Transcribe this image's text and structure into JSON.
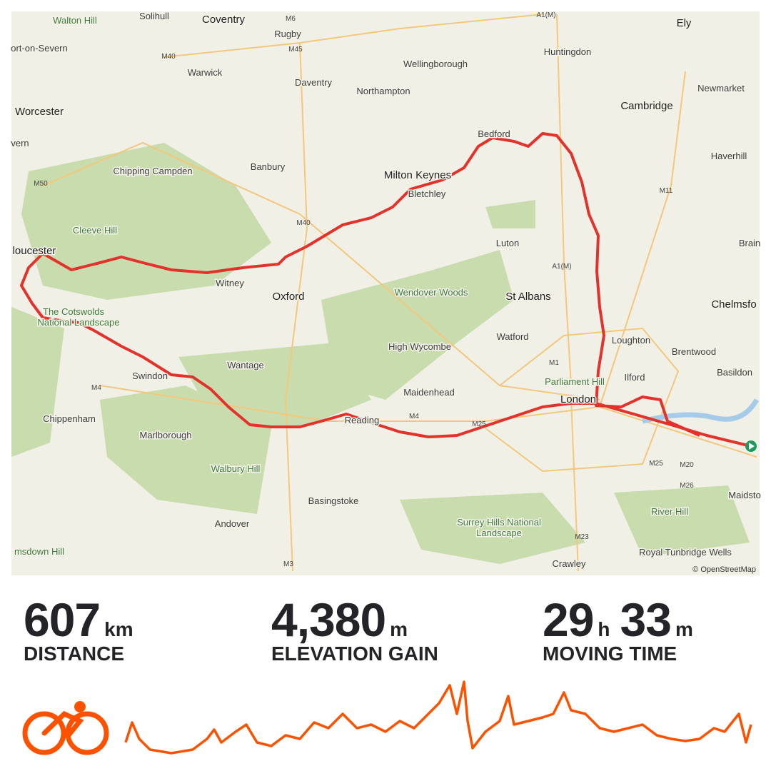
{
  "map": {
    "labels": [
      "Walton Hill",
      "Solihull",
      "Coventry",
      "M6",
      "Rugby",
      "M45",
      "A1(M)",
      "Ely",
      "ort-on-Severn",
      "M40",
      "Warwick",
      "Huntingdon",
      "Wellingborough",
      "Daventry",
      "Northampton",
      "Newmarket",
      "Worcester",
      "Cambridge",
      "vern",
      "Bedford",
      "Haverhill",
      "Chipping Campden",
      "Banbury",
      "Milton Keynes",
      "M50",
      "Bletchley",
      "M11",
      "Cleeve Hill",
      "M40",
      "Luton",
      "Brain",
      "loucester",
      "A1(M)",
      "Witney",
      "Oxford",
      "Wendover Woods",
      "St Albans",
      "Chelmsfo",
      "The Cotswolds",
      "National Landscape",
      "Watford",
      "Loughton",
      "High Wycombe",
      "Brentwood",
      "M1",
      "Wantage",
      "Swindon",
      "Parliament Hill",
      "Ilford",
      "Basildon",
      "M4",
      "Maidenhead",
      "London",
      "Chippenham",
      "M4",
      "Reading",
      "M25",
      "Marlborough",
      "M25",
      "M20",
      "Walbury Hill",
      "M26",
      "Maidsto",
      "Basingstoke",
      "River Hill",
      "Surrey Hills National",
      "Landscape",
      "Andover",
      "M23",
      "Royal Tunbridge Wells",
      "msdown Hill",
      "M3",
      "Crawley"
    ],
    "attribution": "© OpenStreetMap"
  },
  "stats": [
    {
      "value": "607",
      "unit": "km",
      "label": "DISTANCE"
    },
    {
      "value": "4,380",
      "unit": "m",
      "label": "ELEVATION GAIN"
    },
    {
      "hours": "29",
      "hours_unit": "h",
      "minutes": "33",
      "minutes_unit": "m",
      "label": "MOVING TIME"
    }
  ]
}
